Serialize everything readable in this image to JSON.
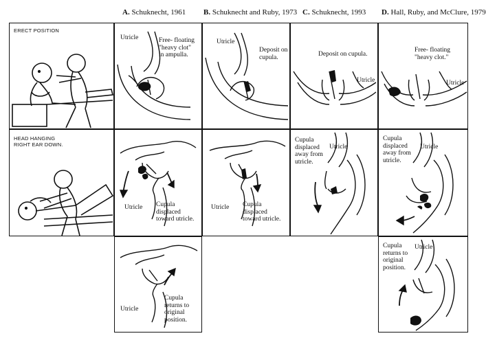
{
  "headers": [
    {
      "letter": "A.",
      "author": "Schuknecht, 1961"
    },
    {
      "letter": "B.",
      "author": "Schuknecht and Ruby, 1973"
    },
    {
      "letter": "C.",
      "author": "Schuknecht, 1993"
    },
    {
      "letter": "D.",
      "author": "Hall, Ruby, and McClure, 1979"
    }
  ],
  "positions": {
    "erect": "ERECT POSITION",
    "hanging": "HEAD HANGING\nRIGHT EAR DOWN."
  },
  "labels": {
    "utricle": "Utricle",
    "free_floating_ampulla": "Free- floating\n\"heavy clot\"\nin ampulla.",
    "deposit_cupula_b": "Deposit on\ncupula.",
    "deposit_cupula_c": "Deposit on cupula.",
    "free_floating_d": "Free- floating\n\"heavy clot.\"",
    "displaced_toward": "Cupula\ndisplaced\ntoward utricle.",
    "displaced_away": "Cupula\ndisplaced\naway from\nutricle.",
    "returns": "Cupula\nreturns to\noriginal\nposition."
  }
}
